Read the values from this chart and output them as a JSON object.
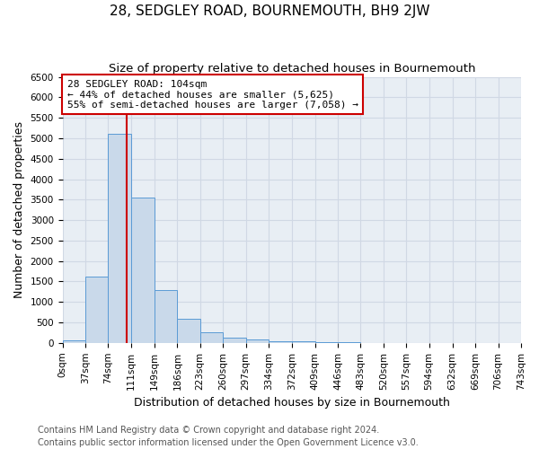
{
  "title": "28, SEDGLEY ROAD, BOURNEMOUTH, BH9 2JW",
  "subtitle": "Size of property relative to detached houses in Bournemouth",
  "xlabel": "Distribution of detached houses by size in Bournemouth",
  "ylabel": "Number of detached properties",
  "footer_line1": "Contains HM Land Registry data © Crown copyright and database right 2024.",
  "footer_line2": "Contains public sector information licensed under the Open Government Licence v3.0.",
  "bin_edges": [
    0,
    37,
    74,
    111,
    149,
    186,
    223,
    260,
    297,
    334,
    372,
    409,
    446,
    483,
    520,
    557,
    594,
    632,
    669,
    706,
    743
  ],
  "bar_heights": [
    55,
    1620,
    5100,
    3560,
    1280,
    580,
    260,
    120,
    75,
    50,
    30,
    15,
    10,
    5,
    0,
    0,
    0,
    0,
    0,
    0
  ],
  "bar_color": "#c9d9ea",
  "bar_edge_color": "#5b9bd5",
  "grid_color": "#d0d8e4",
  "background_color": "#e8eef4",
  "property_size": 104,
  "vline_color": "#cc0000",
  "annotation_text": "28 SEDGLEY ROAD: 104sqm\n← 44% of detached houses are smaller (5,625)\n55% of semi-detached houses are larger (7,058) →",
  "annotation_box_color": "white",
  "annotation_box_edge": "#cc0000",
  "ylim": [
    0,
    6500
  ],
  "yticks": [
    0,
    500,
    1000,
    1500,
    2000,
    2500,
    3000,
    3500,
    4000,
    4500,
    5000,
    5500,
    6000,
    6500
  ],
  "title_fontsize": 11,
  "subtitle_fontsize": 9.5,
  "axis_label_fontsize": 9,
  "tick_fontsize": 7.5,
  "footer_fontsize": 7
}
